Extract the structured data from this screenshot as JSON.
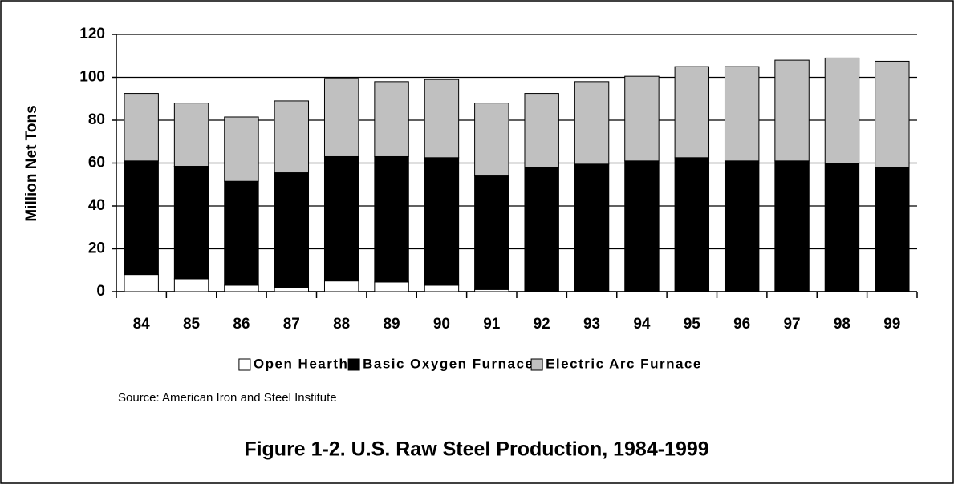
{
  "chart_data": {
    "type": "stacked_bar",
    "title": "Figure 1-2. U.S. Raw Steel Production, 1984-1999",
    "source": "Source: American Iron and Steel Institute",
    "y_label": "Million Net Tons",
    "categories": [
      "84",
      "85",
      "86",
      "87",
      "88",
      "89",
      "90",
      "91",
      "92",
      "93",
      "94",
      "95",
      "96",
      "97",
      "98",
      "99"
    ],
    "series": [
      {
        "name": "Open Hearth",
        "color": "#ffffff",
        "values": [
          8,
          6,
          3,
          2,
          5,
          4.5,
          3,
          1,
          0,
          0,
          0,
          0,
          0,
          0,
          0,
          0
        ]
      },
      {
        "name": "Basic Oxygen Furnace",
        "color": "#000000",
        "values": [
          53,
          52.5,
          48.5,
          53.5,
          58,
          58.5,
          59.5,
          53,
          58,
          59.5,
          61,
          62.5,
          61,
          61,
          60,
          58
        ]
      },
      {
        "name": "Electric Arc Furnace",
        "color": "#c0c0c0",
        "values": [
          31.5,
          29.5,
          30,
          33.5,
          36.5,
          35,
          36.5,
          34,
          34.5,
          38.5,
          39.5,
          42.5,
          44,
          47,
          49,
          49.5
        ]
      }
    ],
    "ylim": [
      0,
      120
    ],
    "yticks": [
      0,
      20,
      40,
      60,
      80,
      100,
      120
    ],
    "grid": true,
    "legend": "bottom"
  }
}
